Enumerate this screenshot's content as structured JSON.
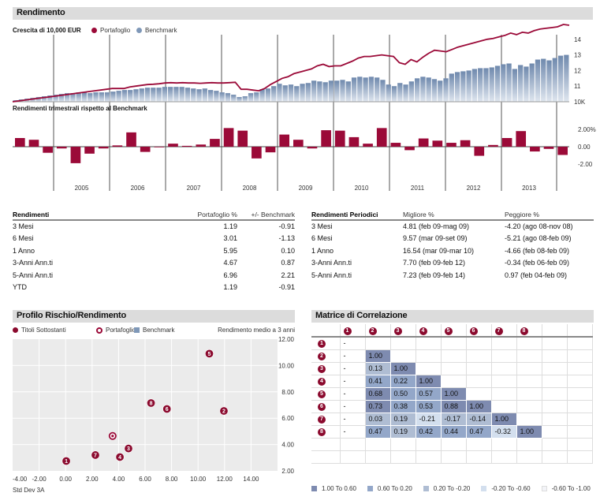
{
  "colors": {
    "portfolio": "#9b0a38",
    "benchmark": "#7f98b8",
    "section_bg": "#dcdcdc",
    "scatter_bg": "#ebebeb",
    "corr_bins": [
      "#7e8bb0",
      "#93a7c9",
      "#afbdd3",
      "#d3dfee",
      "#f3f4f8"
    ]
  },
  "rendimento": {
    "title": "Rendimento",
    "growth_label": "Crescita di  10,000 EUR",
    "legend_portfolio": "Portafoglio",
    "legend_benchmark": "Benchmark",
    "quarterly_label": "Rendimenti trimestrali rispetto al Benchmark"
  },
  "chart_data": [
    {
      "type": "line",
      "title": "Crescita di 10,000 EUR",
      "ylabel": "",
      "y_ticks": [
        "10K",
        "11",
        "12",
        "13",
        "14"
      ],
      "ylim": [
        10,
        15
      ],
      "x_ticks": [
        "2005",
        "2006",
        "2007",
        "2008",
        "2009",
        "2010",
        "2011",
        "2012",
        "2013"
      ],
      "series": [
        {
          "name": "Portafoglio",
          "kind": "line",
          "values": [
            10.0,
            10.05,
            10.1,
            10.15,
            10.2,
            10.25,
            10.3,
            10.35,
            10.4,
            10.45,
            10.5,
            10.55,
            10.6,
            10.65,
            10.7,
            10.75,
            10.8,
            10.85,
            10.85,
            10.85,
            10.95,
            11.0,
            11.05,
            11.1,
            11.12,
            11.15,
            11.2,
            11.22,
            11.2,
            11.22,
            11.2,
            11.2,
            11.18,
            11.2,
            11.22,
            11.2,
            11.2,
            11.22,
            11.25,
            10.8,
            10.8,
            10.75,
            10.7,
            10.85,
            11.1,
            11.3,
            11.5,
            11.6,
            11.8,
            11.9,
            12.0,
            12.1,
            12.3,
            12.4,
            12.25,
            12.3,
            12.3,
            12.45,
            12.6,
            12.8,
            12.9,
            12.9,
            12.95,
            13.0,
            12.95,
            12.9,
            12.5,
            12.4,
            12.7,
            12.55,
            12.85,
            13.1,
            13.3,
            13.25,
            13.2,
            13.35,
            13.5,
            13.6,
            13.7,
            13.8,
            13.9,
            14.0,
            14.05,
            14.15,
            14.25,
            14.4,
            14.3,
            14.45,
            14.4,
            14.55,
            14.65,
            14.7,
            14.75,
            14.8,
            14.95,
            14.9
          ]
        },
        {
          "name": "Benchmark",
          "kind": "bar",
          "values": [
            10.1,
            10.15,
            10.2,
            10.25,
            10.3,
            10.35,
            10.4,
            10.45,
            10.5,
            10.55,
            10.55,
            10.6,
            10.6,
            10.55,
            10.6,
            10.6,
            10.6,
            10.65,
            10.7,
            10.75,
            10.75,
            10.8,
            10.85,
            10.9,
            10.9,
            10.9,
            10.95,
            10.95,
            10.95,
            10.95,
            10.9,
            10.85,
            10.8,
            10.85,
            10.75,
            10.7,
            10.6,
            10.55,
            10.45,
            10.3,
            10.35,
            10.55,
            10.6,
            10.8,
            10.85,
            11.0,
            11.15,
            11.05,
            11.1,
            11.0,
            11.15,
            11.2,
            11.35,
            11.3,
            11.25,
            11.35,
            11.35,
            11.4,
            11.3,
            11.55,
            11.6,
            11.55,
            11.6,
            11.55,
            11.4,
            11.1,
            11.0,
            11.2,
            11.1,
            11.3,
            11.5,
            11.6,
            11.55,
            11.45,
            11.35,
            11.5,
            11.8,
            11.9,
            11.95,
            12.0,
            12.1,
            12.15,
            12.15,
            12.2,
            12.3,
            12.4,
            12.45,
            12.1,
            12.35,
            12.25,
            12.45,
            12.7,
            12.75,
            12.65,
            12.8,
            12.95,
            13.0
          ]
        }
      ]
    },
    {
      "type": "bar",
      "title": "Rendimenti trimestrali rispetto al Benchmark",
      "y_ticks": [
        "2.00%",
        "0.00",
        "-2.00"
      ],
      "ylim": [
        -5,
        4
      ],
      "x_ticks": [
        "2005",
        "2006",
        "2007",
        "2008",
        "2009",
        "2010",
        "2011",
        "2012",
        "2013"
      ],
      "values": [
        1.0,
        0.8,
        -0.7,
        -0.2,
        -1.9,
        -0.8,
        -0.2,
        0.15,
        1.65,
        -0.6,
        -0.05,
        0.35,
        0.1,
        0.25,
        0.9,
        2.15,
        1.85,
        -1.35,
        -0.65,
        1.4,
        0.8,
        -0.2,
        1.9,
        1.85,
        1.1,
        0.35,
        2.15,
        0.45,
        -0.4,
        0.95,
        0.7,
        0.45,
        0.75,
        -1.05,
        0.2,
        1.0,
        1.8,
        -0.55,
        -0.25,
        -0.95
      ]
    },
    {
      "type": "scatter",
      "title": "Profilo Rischio/Rendimento",
      "xlabel": "Std Dev 3A",
      "ylabel": "Rendimento medio a 3 anni",
      "xlim": [
        -4,
        16
      ],
      "ylim": [
        2,
        12
      ],
      "x_ticks": [
        "-4.00",
        "-2.00",
        "0.00",
        "2.00",
        "4.00",
        "6.00",
        "8.00",
        "10.00",
        "12.00",
        "14.00"
      ],
      "y_ticks": [
        "12.00",
        "10.00",
        "8.00",
        "6.00",
        "4.00",
        "2.00"
      ],
      "points": [
        {
          "label": "1",
          "x": 0.05,
          "y": 2.75,
          "kind": "titolo"
        },
        {
          "label": "2",
          "x": 11.95,
          "y": 6.55,
          "kind": "titolo"
        },
        {
          "label": "3",
          "x": 4.75,
          "y": 3.7,
          "kind": "titolo"
        },
        {
          "label": "4",
          "x": 4.1,
          "y": 3.05,
          "kind": "titolo"
        },
        {
          "label": "5",
          "x": 10.85,
          "y": 10.9,
          "kind": "titolo"
        },
        {
          "label": "6",
          "x": 7.65,
          "y": 6.7,
          "kind": "titolo"
        },
        {
          "label": "7",
          "x": 2.25,
          "y": 3.2,
          "kind": "titolo"
        },
        {
          "label": "8",
          "x": 6.45,
          "y": 7.15,
          "kind": "titolo"
        },
        {
          "label": "",
          "x": 3.55,
          "y": 4.65,
          "kind": "portafoglio"
        }
      ],
      "legend": [
        "Titoli Sottostanti",
        "Portafoglio",
        "Benchmark"
      ]
    },
    {
      "type": "heatmap",
      "title": "Matrice di Correlazione",
      "labels": [
        "1",
        "2",
        "3",
        "4",
        "5",
        "6",
        "7",
        "8"
      ],
      "matrix": [
        [
          "-"
        ],
        [
          "-",
          "1.00"
        ],
        [
          "-",
          "0.13",
          "1.00"
        ],
        [
          "-",
          "0.41",
          "0.22",
          "1.00"
        ],
        [
          "-",
          "0.68",
          "0.50",
          "0.57",
          "1.00"
        ],
        [
          "-",
          "0.73",
          "0.38",
          "0.53",
          "0.88",
          "1.00"
        ],
        [
          "-",
          "0.03",
          "0.19",
          "-0.21",
          "-0.17",
          "-0.14",
          "1.00"
        ],
        [
          "-",
          "0.47",
          "0.19",
          "0.42",
          "0.44",
          "0.47",
          "-0.32",
          "1.00"
        ]
      ],
      "legend": [
        "1.00 To 0.60",
        "0.60 To 0.20",
        "0.20 To -0.20",
        "-0.20 To -0.60",
        "-0.60 To -1.00"
      ]
    }
  ],
  "rendimenti_table": {
    "headers": [
      "Rendimenti",
      "Portafoglio %",
      "+/- Benchmark"
    ],
    "rows": [
      [
        "3 Mesi",
        "1.19",
        "-0.91"
      ],
      [
        "6 Mesi",
        "3.01",
        "-1.13"
      ],
      [
        "1 Anno",
        "5.95",
        "0.10"
      ],
      [
        "3-Anni Ann.ti",
        "4.67",
        "0.87"
      ],
      [
        "5-Anni Ann.ti",
        "6.96",
        "2.21"
      ],
      [
        "YTD",
        "1.19",
        "-0.91"
      ]
    ]
  },
  "periodici_table": {
    "headers": [
      "Rendimenti Periodici",
      "Migliore %",
      "Peggiore %"
    ],
    "rows": [
      [
        "3 Mesi",
        "4.81 (feb 09-mag 09)",
        "-4.20 (ago 08-nov 08)"
      ],
      [
        "6 Mesi",
        "9.57 (mar 09-set 09)",
        "-5.21 (ago 08-feb 09)"
      ],
      [
        "1 Anno",
        "16.54 (mar 09-mar 10)",
        "-4.66 (feb 08-feb 09)"
      ],
      [
        "3-Anni Ann.ti",
        "7.70 (feb 09-feb 12)",
        "-0.34 (feb 06-feb 09)"
      ],
      [
        "5-Anni Ann.ti",
        "7.23 (feb 09-feb 14)",
        "0.97 (feb 04-feb 09)"
      ]
    ]
  },
  "rischio": {
    "title": "Profilo Rischio/Rendimento",
    "legend_titoli": "Titoli Sottostanti",
    "legend_portafoglio": "Portafoglio",
    "legend_benchmark": "Benchmark",
    "ylabel": "Rendimento medio a 3 anni",
    "xlabel": "Std Dev 3A"
  },
  "matrice": {
    "title": "Matrice di Correlazione"
  }
}
